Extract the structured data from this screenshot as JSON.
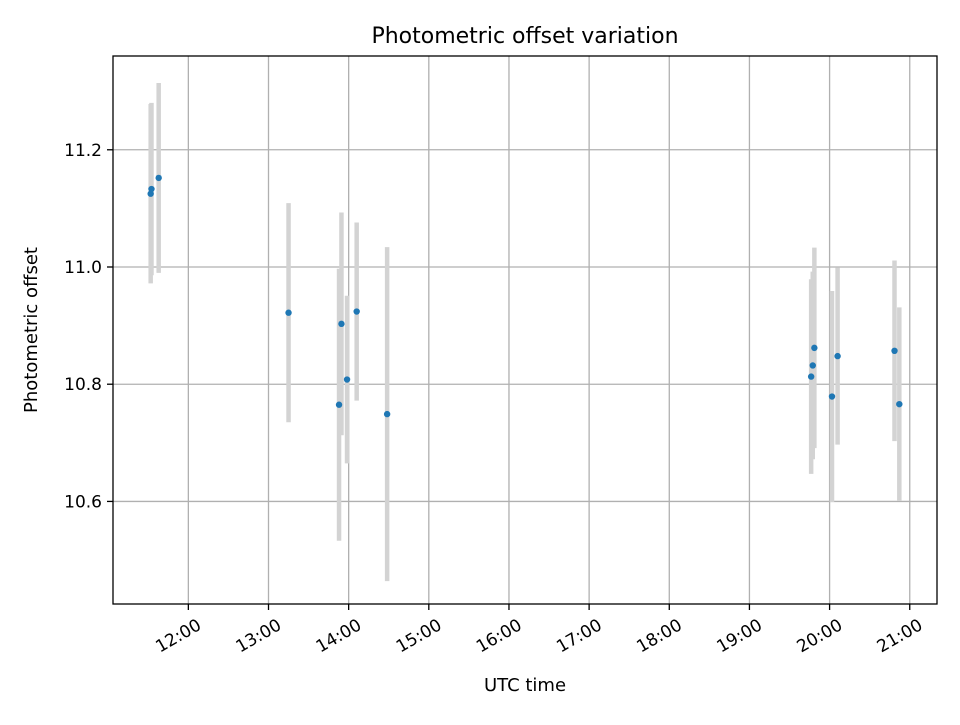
{
  "chart_data": {
    "type": "scatter",
    "title": "Photometric offset variation",
    "xlabel": "UTC time",
    "ylabel": "Photometric offset",
    "x_unit": "hours UTC",
    "xlim": [
      11.06,
      21.34
    ],
    "ylim": [
      10.425,
      11.36
    ],
    "x_ticks": [
      {
        "value": 12,
        "label": "12:00"
      },
      {
        "value": 13,
        "label": "13:00"
      },
      {
        "value": 14,
        "label": "14:00"
      },
      {
        "value": 15,
        "label": "15:00"
      },
      {
        "value": 16,
        "label": "16:00"
      },
      {
        "value": 17,
        "label": "17:00"
      },
      {
        "value": 18,
        "label": "18:00"
      },
      {
        "value": 19,
        "label": "19:00"
      },
      {
        "value": 20,
        "label": "20:00"
      },
      {
        "value": 21,
        "label": "21:00"
      }
    ],
    "y_ticks": [
      {
        "value": 10.6,
        "label": "10.6"
      },
      {
        "value": 10.8,
        "label": "10.8"
      },
      {
        "value": 11.0,
        "label": "11.0"
      },
      {
        "value": 11.2,
        "label": "11.2"
      }
    ],
    "grid": true,
    "marker_color": "#1f77b4",
    "errorbar_color": "#d3d3d3",
    "points": [
      {
        "x": 11.53,
        "y": 11.125,
        "err": 0.153
      },
      {
        "x": 11.54,
        "y": 11.133,
        "err": 0.147
      },
      {
        "x": 11.63,
        "y": 11.152,
        "err": 0.162
      },
      {
        "x": 13.25,
        "y": 10.922,
        "err": 0.187
      },
      {
        "x": 13.88,
        "y": 10.765,
        "err": 0.232
      },
      {
        "x": 13.91,
        "y": 10.903,
        "err": 0.19
      },
      {
        "x": 13.98,
        "y": 10.808,
        "err": 0.143
      },
      {
        "x": 14.1,
        "y": 10.924,
        "err": 0.152
      },
      {
        "x": 14.48,
        "y": 10.749,
        "err": 0.285
      },
      {
        "x": 19.77,
        "y": 10.813,
        "err": 0.166
      },
      {
        "x": 19.79,
        "y": 10.832,
        "err": 0.16
      },
      {
        "x": 19.81,
        "y": 10.862,
        "err": 0.171
      },
      {
        "x": 20.03,
        "y": 10.779,
        "err": 0.18
      },
      {
        "x": 20.1,
        "y": 10.848,
        "err": 0.151
      },
      {
        "x": 20.81,
        "y": 10.857,
        "err": 0.154
      },
      {
        "x": 20.87,
        "y": 10.766,
        "err": 0.165
      }
    ]
  }
}
